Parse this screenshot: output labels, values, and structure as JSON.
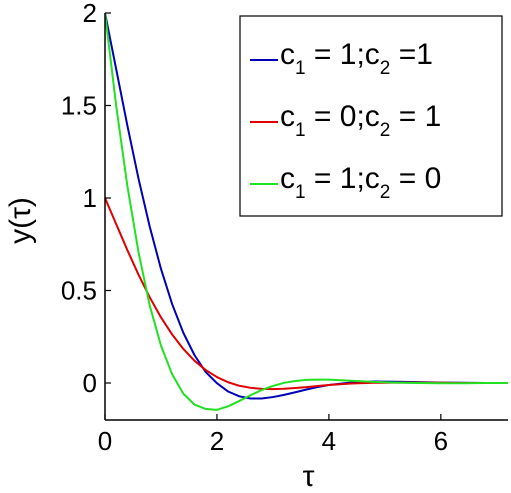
{
  "chart_data": {
    "type": "line",
    "title": "",
    "xlabel": "τ",
    "ylabel": "y(τ)",
    "xlim": [
      0,
      7.2
    ],
    "ylim": [
      -0.2,
      2
    ],
    "xticks": [
      0,
      2,
      4,
      6
    ],
    "xtick_labels": [
      "0",
      "2",
      "4",
      "6"
    ],
    "yticks": [
      0,
      0.5,
      1,
      1.5,
      2
    ],
    "ytick_labels": [
      "0",
      "0.5",
      "1",
      "1.5",
      "2"
    ],
    "grid": false,
    "legend_position": "top-right",
    "x": [
      0,
      0.2,
      0.4,
      0.6,
      0.8,
      1.0,
      1.2,
      1.4,
      1.6,
      1.8,
      2.0,
      2.2,
      2.4,
      2.6,
      2.8,
      3.0,
      3.2,
      3.4,
      3.6,
      3.8,
      4.0,
      4.4,
      4.8,
      5.2,
      5.6,
      6.0,
      6.4,
      6.8,
      7.2
    ],
    "series": [
      {
        "name_parts": [
          "c",
          "1",
          " = 1;c",
          "2",
          " =1"
        ],
        "color": "#0000b4",
        "values": [
          2.0,
          1.696,
          1.391,
          1.103,
          0.844,
          0.617,
          0.426,
          0.271,
          0.15,
          0.059,
          -0.001,
          -0.046,
          -0.072,
          -0.084,
          -0.084,
          -0.076,
          -0.064,
          -0.05,
          -0.035,
          -0.022,
          -0.011,
          0.003,
          0.008,
          0.007,
          0.005,
          0.002,
          0.001,
          0.0,
          0.0
        ]
      },
      {
        "name_parts": [
          "c",
          "1",
          " = 0;c",
          "2",
          " = 1"
        ],
        "color": "#e00000",
        "values": [
          1.0,
          0.859,
          0.718,
          0.585,
          0.463,
          0.355,
          0.262,
          0.184,
          0.12,
          0.07,
          0.032,
          0.004,
          -0.015,
          -0.026,
          -0.032,
          -0.033,
          -0.031,
          -0.027,
          -0.022,
          -0.016,
          -0.011,
          -0.003,
          0.001,
          0.002,
          0.002,
          0.001,
          0.0,
          0.0,
          0.0
        ]
      },
      {
        "name_parts": [
          "c",
          "1",
          " = 1;c",
          "2",
          " = 0"
        ],
        "color": "#22e022",
        "values": [
          2.0,
          1.498,
          1.064,
          0.705,
          0.418,
          0.202,
          0.047,
          -0.058,
          -0.117,
          -0.14,
          -0.145,
          -0.126,
          -0.097,
          -0.066,
          -0.038,
          -0.016,
          0.001,
          0.011,
          0.017,
          0.018,
          0.018,
          0.012,
          0.006,
          0.002,
          0.0,
          -0.001,
          -0.001,
          0.0,
          0.0
        ]
      }
    ]
  }
}
